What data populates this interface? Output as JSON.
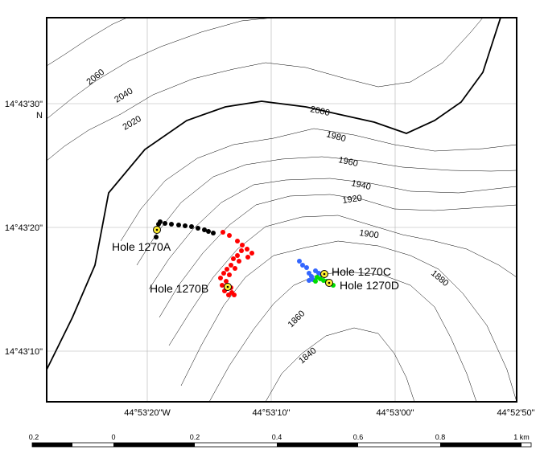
{
  "map": {
    "lat_labels": [
      {
        "text": "14°43'30\"",
        "suffix": "N"
      },
      {
        "text": "14°43'20\""
      },
      {
        "text": "14°43'10\""
      }
    ],
    "lon_labels": [
      "44°53'20\"W",
      "44°53'10\"",
      "44°53'00\"",
      "44°52'50\""
    ],
    "contour_labels": [
      "2060",
      "2040",
      "2020",
      "2000",
      "1980",
      "1960",
      "1940",
      "1920",
      "1900",
      "1880",
      "1860",
      "1840"
    ],
    "holes": [
      {
        "label": "Hole 1270A",
        "color": "#000000"
      },
      {
        "label": "Hole 1270B",
        "color": "#ff0000"
      },
      {
        "label": "Hole 1270C",
        "color": "#3366ff"
      },
      {
        "label": "Hole 1270D",
        "color": "#00dd00"
      }
    ],
    "scale_bar": {
      "labels": [
        "0.2",
        "0",
        "0.2",
        "0.4",
        "0.6",
        "0.8",
        "1 km"
      ]
    }
  }
}
